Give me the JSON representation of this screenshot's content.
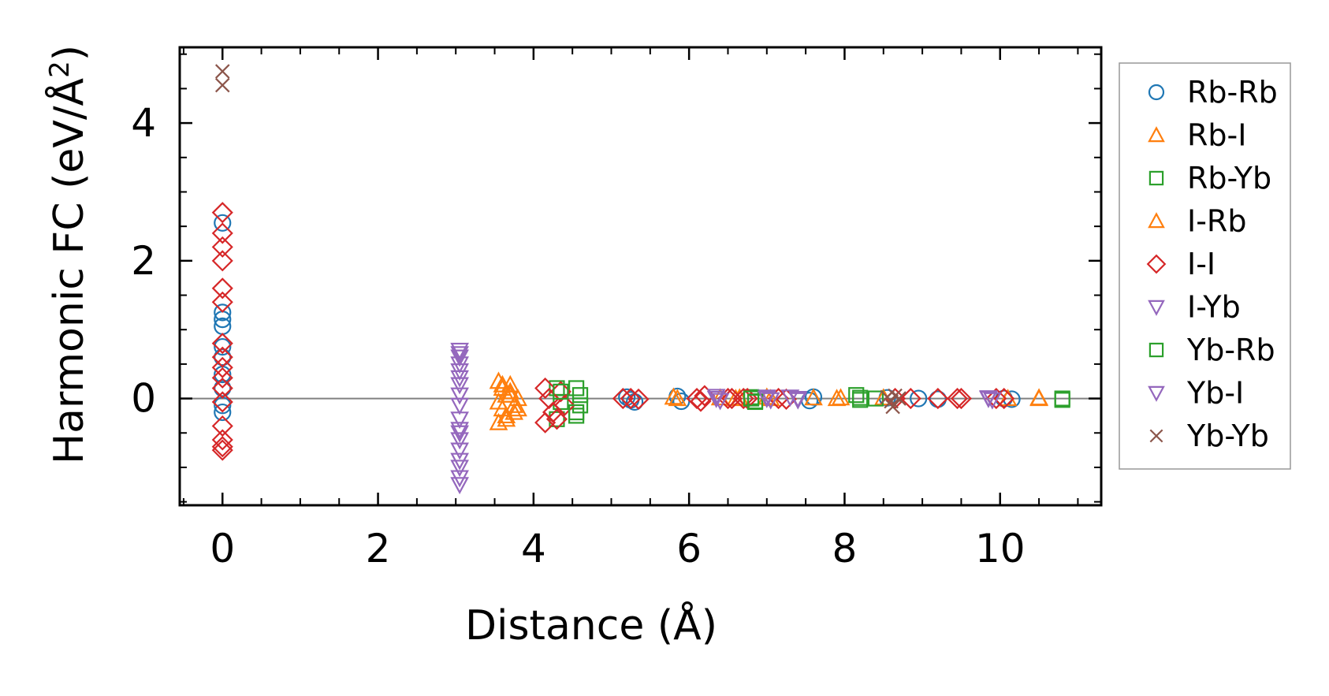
{
  "chart_data": {
    "type": "scatter",
    "xlabel": "Distance (Å)",
    "ylabel_main": "Harmonic FC (eV/Å",
    "ylabel_sup": "2",
    "ylabel_end": ")",
    "xlim": [
      -0.55,
      11.3
    ],
    "ylim": [
      -1.55,
      5.1
    ],
    "xticks": [
      0,
      2,
      4,
      6,
      8,
      10
    ],
    "yticks": [
      0,
      2,
      4
    ],
    "xtick_labels": [
      "0",
      "2",
      "4",
      "6",
      "8",
      "10"
    ],
    "ytick_labels": [
      "0",
      "2",
      "4"
    ],
    "zero_line": true,
    "grid": false,
    "legend_position": "outside-right",
    "series": [
      {
        "name": "Rb-Rb",
        "marker": "circle",
        "color": "#1f77b4",
        "points": [
          [
            0,
            2.55
          ],
          [
            0,
            1.25
          ],
          [
            0,
            1.15
          ],
          [
            0,
            1.05
          ],
          [
            0,
            0.75
          ],
          [
            0,
            0.6
          ],
          [
            0,
            0.35
          ],
          [
            0,
            0.15
          ],
          [
            0,
            -0.1
          ],
          [
            0,
            -0.2
          ],
          [
            5.2,
            0.02
          ],
          [
            5.25,
            -0.02
          ],
          [
            5.3,
            -0.05
          ],
          [
            5.85,
            0.03
          ],
          [
            5.9,
            -0.04
          ],
          [
            7.55,
            -0.03
          ],
          [
            7.6,
            0.02
          ],
          [
            8.55,
            0.01
          ],
          [
            8.95,
            0
          ],
          [
            9.2,
            -0.01
          ],
          [
            10.05,
            0
          ],
          [
            10.15,
            -0.01
          ]
        ]
      },
      {
        "name": "Rb-I",
        "marker": "triangle-up",
        "color": "#ff7f0e",
        "points": [
          [
            3.55,
            0.25
          ],
          [
            3.6,
            0.15
          ],
          [
            3.65,
            0.05
          ],
          [
            3.55,
            -0.05
          ],
          [
            3.6,
            -0.15
          ],
          [
            3.65,
            -0.25
          ],
          [
            3.55,
            -0.35
          ],
          [
            3.7,
            0.1
          ],
          [
            3.75,
            -0.1
          ],
          [
            3.8,
            0
          ],
          [
            3.75,
            -0.2
          ],
          [
            3.7,
            0.2
          ],
          [
            5.8,
            0.02
          ],
          [
            6.4,
            0.01
          ],
          [
            6.6,
            0
          ],
          [
            7.0,
            0.02
          ],
          [
            7.6,
            0.01
          ],
          [
            7.9,
            0
          ],
          [
            8.5,
            0.01
          ],
          [
            10.1,
            0
          ],
          [
            10.5,
            0.01
          ]
        ]
      },
      {
        "name": "Rb-Yb",
        "marker": "square",
        "color": "#2ca02c",
        "points": [
          [
            4.3,
            0.15
          ],
          [
            4.35,
            -0.05
          ],
          [
            4.3,
            -0.3
          ],
          [
            4.55,
            0.15
          ],
          [
            4.6,
            -0.1
          ],
          [
            4.55,
            -0.25
          ],
          [
            6.8,
            0.02
          ],
          [
            6.85,
            -0.04
          ],
          [
            8.15,
            0.05
          ],
          [
            8.2,
            -0.02
          ],
          [
            8.4,
            0
          ],
          [
            10.8,
            -0.02
          ]
        ]
      },
      {
        "name": "I-Rb",
        "marker": "triangle-up",
        "color": "#ff7f0e",
        "points": [
          [
            3.6,
            0.2
          ],
          [
            3.65,
            -0.3
          ],
          [
            3.7,
            0.05
          ],
          [
            3.8,
            -0.15
          ],
          [
            5.85,
            0
          ],
          [
            6.65,
            0.01
          ],
          [
            7.05,
            0
          ],
          [
            7.95,
            0.01
          ],
          [
            10.5,
            0
          ]
        ]
      },
      {
        "name": "I-I",
        "marker": "diamond",
        "color": "#d62728",
        "points": [
          [
            0,
            2.7
          ],
          [
            0,
            2.4
          ],
          [
            0,
            2.2
          ],
          [
            0,
            2.0
          ],
          [
            0,
            1.6
          ],
          [
            0,
            1.4
          ],
          [
            0,
            0.8
          ],
          [
            0,
            0.6
          ],
          [
            0,
            0.45
          ],
          [
            0,
            0.3
          ],
          [
            0,
            0.15
          ],
          [
            0,
            -0.05
          ],
          [
            0,
            -0.4
          ],
          [
            0,
            -0.6
          ],
          [
            0,
            -0.7
          ],
          [
            0,
            -0.75
          ],
          [
            4.15,
            0.15
          ],
          [
            4.2,
            0
          ],
          [
            4.25,
            -0.2
          ],
          [
            4.15,
            -0.35
          ],
          [
            4.35,
            0.1
          ],
          [
            4.4,
            -0.1
          ],
          [
            4.3,
            -0.3
          ],
          [
            5.15,
            0
          ],
          [
            5.25,
            0
          ],
          [
            5.35,
            -0.01
          ],
          [
            6.1,
            0
          ],
          [
            6.15,
            -0.04
          ],
          [
            6.2,
            0.04
          ],
          [
            6.5,
            0
          ],
          [
            6.55,
            0
          ],
          [
            6.7,
            0
          ],
          [
            6.75,
            0
          ],
          [
            7.15,
            0
          ],
          [
            7.25,
            -0.01
          ],
          [
            8.65,
            0
          ],
          [
            8.85,
            0
          ],
          [
            9.2,
            0
          ],
          [
            9.45,
            0
          ],
          [
            9.5,
            0
          ],
          [
            9.95,
            0
          ],
          [
            10.05,
            0
          ]
        ]
      },
      {
        "name": "I-Yb",
        "marker": "triangle-down",
        "color": "#9467bd",
        "points": [
          [
            3.05,
            0.7
          ],
          [
            3.05,
            0.6
          ],
          [
            3.05,
            0.5
          ],
          [
            3.05,
            0.4
          ],
          [
            3.05,
            0.3
          ],
          [
            3.05,
            0.2
          ],
          [
            3.05,
            -0.1
          ],
          [
            3.05,
            -0.3
          ],
          [
            3.05,
            -0.45
          ],
          [
            3.05,
            -0.6
          ],
          [
            3.05,
            -0.75
          ],
          [
            3.05,
            -0.9
          ],
          [
            3.05,
            -1.15
          ],
          [
            3.05,
            -1.25
          ],
          [
            6.35,
            0.03
          ],
          [
            6.4,
            -0.03
          ],
          [
            7.0,
            0.02
          ],
          [
            7.05,
            -0.02
          ],
          [
            7.3,
            0.02
          ],
          [
            7.4,
            -0.02
          ],
          [
            9.85,
            0.01
          ]
        ]
      },
      {
        "name": "Yb-Rb",
        "marker": "square",
        "color": "#2ca02c",
        "points": [
          [
            4.35,
            0.1
          ],
          [
            4.6,
            0.05
          ],
          [
            4.55,
            -0.2
          ],
          [
            6.8,
            0
          ],
          [
            6.85,
            -0.05
          ],
          [
            8.2,
            0.01
          ],
          [
            10.8,
            0
          ]
        ]
      },
      {
        "name": "Yb-I",
        "marker": "triangle-down",
        "color": "#9467bd",
        "points": [
          [
            3.05,
            0.65
          ],
          [
            3.05,
            0.05
          ],
          [
            3.05,
            -0.5
          ],
          [
            3.05,
            -1.0
          ],
          [
            6.35,
            0
          ],
          [
            7.0,
            0
          ],
          [
            7.4,
            0
          ],
          [
            9.85,
            0
          ],
          [
            9.9,
            -0.02
          ]
        ]
      },
      {
        "name": "Yb-Yb",
        "marker": "x",
        "color": "#8c564b",
        "points": [
          [
            0,
            4.75
          ],
          [
            0,
            4.55
          ],
          [
            8.55,
            0.02
          ],
          [
            8.6,
            -0.04
          ],
          [
            8.65,
            0.04
          ],
          [
            8.7,
            0
          ],
          [
            8.62,
            -0.12
          ]
        ]
      }
    ]
  }
}
